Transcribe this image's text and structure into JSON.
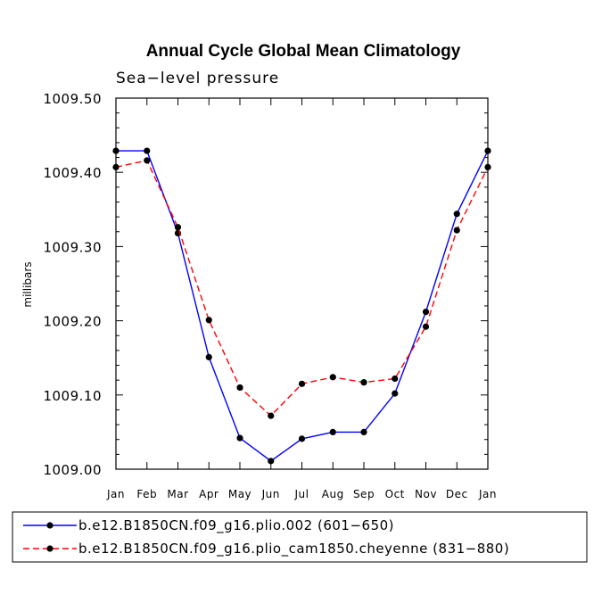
{
  "chart_data": {
    "type": "line",
    "title": "Annual Cycle Global Mean Climatology",
    "subtitle": "Sea−level pressure",
    "xlabel": "",
    "ylabel": "millibars",
    "categories": [
      "Jan",
      "Feb",
      "Mar",
      "Apr",
      "May",
      "Jun",
      "Jul",
      "Aug",
      "Sep",
      "Oct",
      "Nov",
      "Dec",
      "Jan"
    ],
    "ylim": [
      1009.0,
      1009.5
    ],
    "yticks": [
      1009.0,
      1009.1,
      1009.2,
      1009.3,
      1009.4,
      1009.5
    ],
    "ytick_labels": [
      "1009.00",
      "1009.10",
      "1009.20",
      "1009.30",
      "1009.40",
      "1009.50"
    ],
    "grid": false,
    "legend_position": "bottom",
    "series": [
      {
        "name": "b.e12.B1850CN.f09_g16.plio.002 (601−650)",
        "color": "#0000ff",
        "dash": "solid",
        "values": [
          1009.429,
          1009.429,
          1009.318,
          1009.151,
          1009.042,
          1009.011,
          1009.041,
          1009.05,
          1009.05,
          1009.102,
          1009.212,
          1009.344,
          1009.429
        ]
      },
      {
        "name": "b.e12.B1850CN.f09_g16.plio_cam1850.cheyenne (831−880)",
        "color": "#ff0000",
        "dash": "dashed",
        "values": [
          1009.407,
          1009.416,
          1009.326,
          1009.201,
          1009.11,
          1009.072,
          1009.115,
          1009.124,
          1009.117,
          1009.122,
          1009.192,
          1009.322,
          1009.407
        ]
      }
    ]
  }
}
